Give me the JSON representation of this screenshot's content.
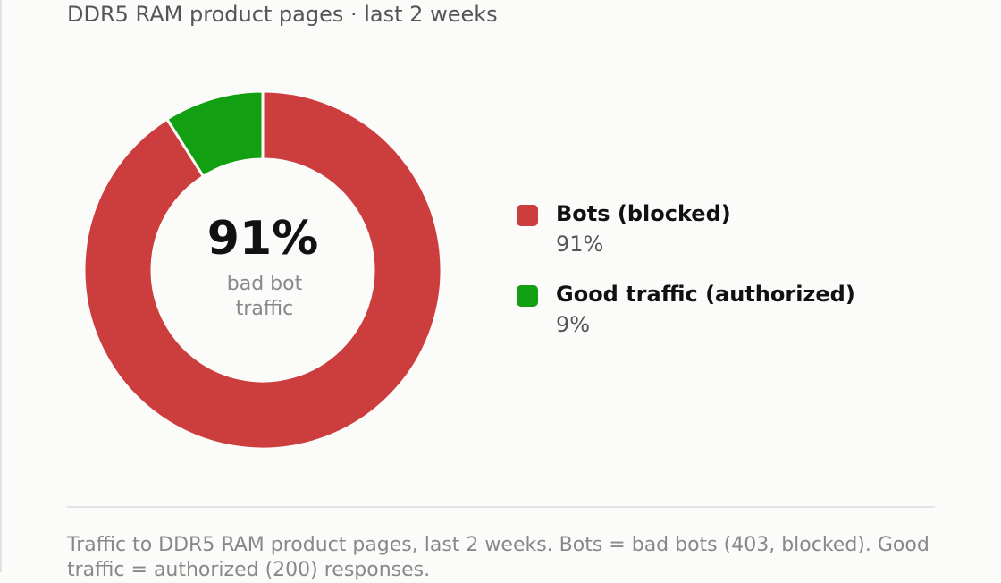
{
  "chart_data": {
    "type": "donut",
    "subtitle": "DDR5 RAM product pages · last 2 weeks",
    "categories": [
      "Bots (blocked)",
      "Good traffic (authorized)"
    ],
    "values": [
      91,
      9
    ],
    "value_labels": [
      "91%",
      "9%"
    ],
    "colors": [
      "#cc3d3d",
      "#12a012"
    ],
    "center_caption": "bad bot traffic",
    "footnote": "Traffic to DDR5 RAM product pages, last 2 weeks. Bots = bad bots (403, blocked). Good traffic = authorized (200) responses."
  }
}
